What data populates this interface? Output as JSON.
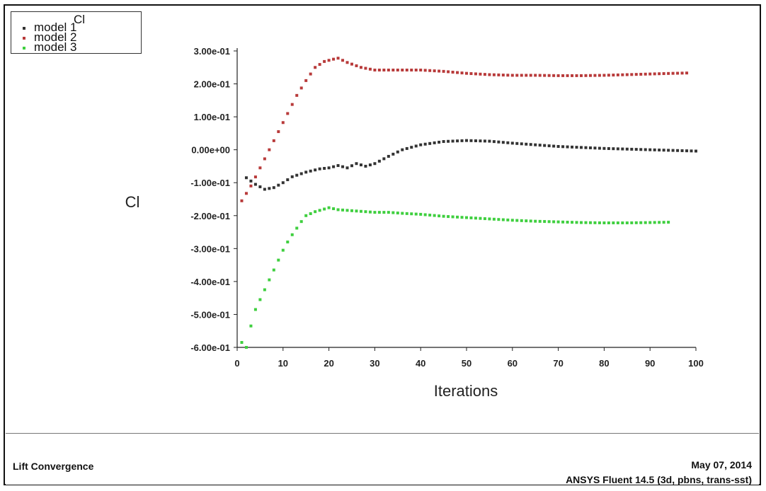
{
  "chart_data": {
    "type": "scatter",
    "title": "",
    "xlabel": "Iterations",
    "ylabel": "Cl",
    "xlim": [
      0,
      100
    ],
    "ylim": [
      -0.6,
      0.3
    ],
    "x_ticks": [
      0,
      10,
      20,
      30,
      40,
      50,
      60,
      70,
      80,
      90,
      100
    ],
    "x_tick_labels": [
      "0",
      "10",
      "20",
      "30",
      "40",
      "50",
      "60",
      "70",
      "80",
      "90",
      "100"
    ],
    "y_ticks": [
      0.3,
      0.2,
      0.1,
      0.0,
      -0.1,
      -0.2,
      -0.3,
      -0.4,
      -0.5,
      -0.6
    ],
    "y_tick_labels": [
      "3.00e-01",
      "2.00e-01",
      "1.00e-01",
      "0.00e+00",
      "-1.00e-01",
      "-2.00e-01",
      "-3.00e-01",
      "-4.00e-01",
      "-5.00e-01",
      "-6.00e-01"
    ],
    "grid": false,
    "legend": {
      "title": "Cl",
      "position": "top-left",
      "entries": [
        "model 1",
        "model 2",
        "model 3"
      ]
    },
    "series": [
      {
        "name": "model 1",
        "color": "#333333",
        "x": [
          2,
          4,
          6,
          8,
          10,
          12,
          15,
          18,
          20,
          22,
          24,
          26,
          28,
          30,
          33,
          36,
          40,
          45,
          50,
          55,
          60,
          65,
          70,
          75,
          80,
          85,
          90,
          95,
          100
        ],
        "y": [
          -0.085,
          -0.105,
          -0.12,
          -0.115,
          -0.1,
          -0.082,
          -0.068,
          -0.058,
          -0.055,
          -0.048,
          -0.055,
          -0.042,
          -0.05,
          -0.042,
          -0.02,
          0.0,
          0.015,
          0.025,
          0.028,
          0.026,
          0.02,
          0.015,
          0.01,
          0.007,
          0.004,
          0.002,
          0.0,
          -0.002,
          -0.004
        ]
      },
      {
        "name": "model 2",
        "color": "#b83a3a",
        "x": [
          1,
          3,
          5,
          7,
          9,
          11,
          13,
          15,
          17,
          19,
          21,
          22,
          24,
          27,
          30,
          35,
          40,
          45,
          50,
          55,
          60,
          65,
          70,
          75,
          80,
          85,
          90,
          95,
          98
        ],
        "y": [
          -0.155,
          -0.11,
          -0.055,
          0.0,
          0.055,
          0.11,
          0.165,
          0.21,
          0.25,
          0.268,
          0.275,
          0.278,
          0.265,
          0.25,
          0.242,
          0.242,
          0.242,
          0.238,
          0.232,
          0.228,
          0.226,
          0.226,
          0.225,
          0.225,
          0.226,
          0.228,
          0.23,
          0.232,
          0.233
        ]
      },
      {
        "name": "model 3",
        "color": "#3fcf3f",
        "x": [
          1,
          2,
          3,
          4,
          5,
          6,
          7,
          8,
          9,
          10,
          11,
          12,
          13,
          14,
          15,
          17,
          19,
          20,
          22,
          25,
          28,
          30,
          33,
          36,
          40,
          45,
          50,
          55,
          60,
          65,
          70,
          75,
          80,
          85,
          90,
          94
        ],
        "y": [
          -0.585,
          -0.6,
          -0.535,
          -0.485,
          -0.455,
          -0.425,
          -0.395,
          -0.365,
          -0.335,
          -0.305,
          -0.28,
          -0.258,
          -0.238,
          -0.218,
          -0.2,
          -0.188,
          -0.18,
          -0.176,
          -0.182,
          -0.185,
          -0.188,
          -0.19,
          -0.19,
          -0.193,
          -0.196,
          -0.202,
          -0.206,
          -0.21,
          -0.214,
          -0.217,
          -0.219,
          -0.221,
          -0.222,
          -0.222,
          -0.221,
          -0.22
        ]
      }
    ]
  },
  "footer": {
    "title": "Lift Convergence",
    "date": "May 07, 2014",
    "software": "ANSYS Fluent 14.5 (3d, pbns, trans-sst)"
  }
}
